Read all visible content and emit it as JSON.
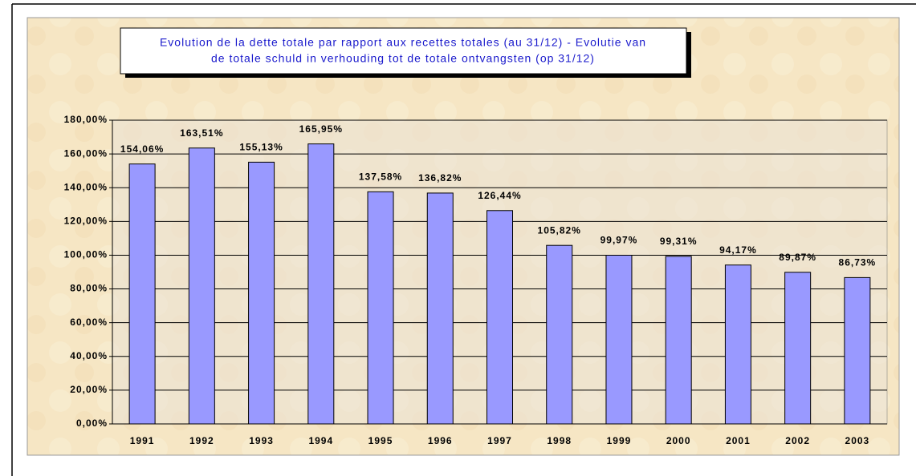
{
  "chart_data": {
    "type": "bar",
    "title": [
      "Evolution de la dette totale par rapport aux recettes totales (au 31/12) - Evolutie van",
      "de totale schuld in verhouding tot de totale ontvangsten (op 31/12)"
    ],
    "categories": [
      "1991",
      "1992",
      "1993",
      "1994",
      "1995",
      "1996",
      "1997",
      "1998",
      "1999",
      "2000",
      "2001",
      "2002",
      "2003"
    ],
    "values": [
      154.06,
      163.51,
      155.13,
      165.95,
      137.58,
      136.82,
      126.44,
      105.82,
      99.97,
      99.31,
      94.17,
      89.87,
      86.73
    ],
    "value_labels": [
      "154,06%",
      "163,51%",
      "155,13%",
      "165,95%",
      "137,58%",
      "136,82%",
      "126,44%",
      "105,82%",
      "99,97%",
      "99,31%",
      "94,17%",
      "89,87%",
      "86,73%"
    ],
    "color": "#9999ff",
    "ylim": [
      0,
      180
    ],
    "yticks": [
      {
        "value": 0,
        "label": "0,00%"
      },
      {
        "value": 20,
        "label": "20,00%"
      },
      {
        "value": 40,
        "label": "40,00%"
      },
      {
        "value": 60,
        "label": "60,00%"
      },
      {
        "value": 80,
        "label": "80,00%"
      },
      {
        "value": 100,
        "label": "100,00%"
      },
      {
        "value": 120,
        "label": "120,00%"
      },
      {
        "value": 140,
        "label": "140,00%"
      },
      {
        "value": 160,
        "label": "160,00%"
      },
      {
        "value": 180,
        "label": "180,00%"
      }
    ],
    "grid": true
  }
}
